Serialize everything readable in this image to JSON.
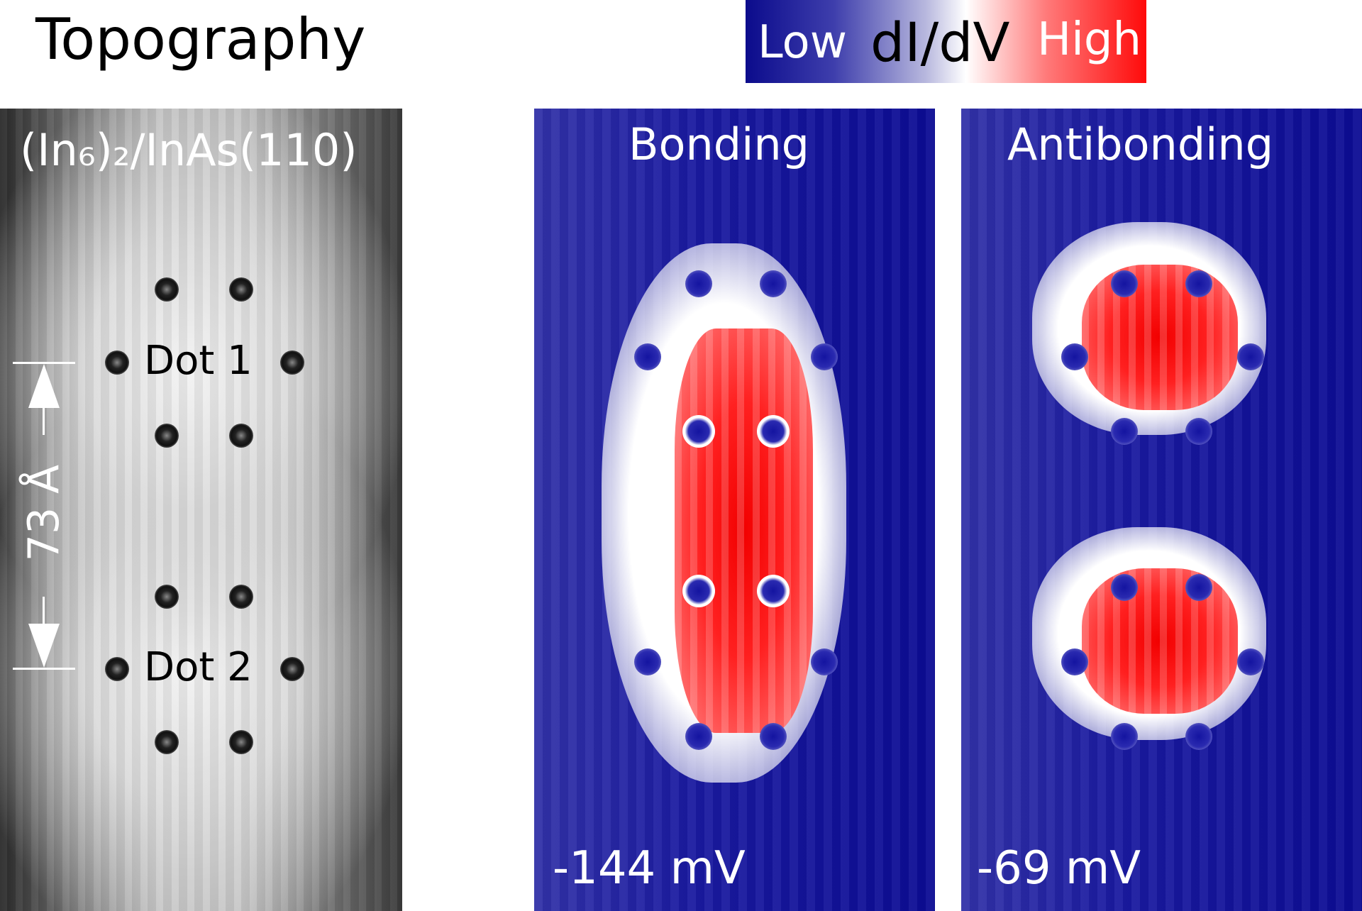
{
  "figure": {
    "title": "Topography",
    "colorbar": {
      "low_label": "Low",
      "quantity_label": "dI/dV",
      "high_label": "High",
      "low_color": "#0b0b8c",
      "mid_color": "#ffffff",
      "high_color": "#ff0a0a"
    }
  },
  "panels": {
    "topography": {
      "label": "(In₆)₂/InAs(110)",
      "dot1_label": "Dot 1",
      "dot2_label": "Dot 2",
      "scale_label": "73 Å"
    },
    "bonding": {
      "title": "Bonding",
      "bias": "-144 mV"
    },
    "antibonding": {
      "title": "Antibonding",
      "bias": "-69 mV"
    }
  }
}
